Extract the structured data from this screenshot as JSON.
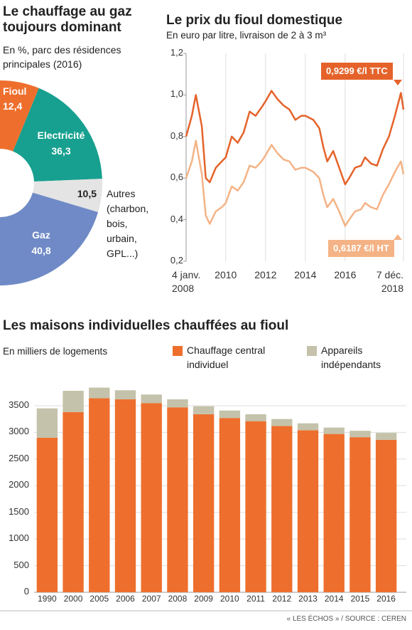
{
  "chart_data": [
    {
      "type": "donut",
      "title": "Le chauffage au gaz toujours dominant",
      "subtitle": "En %, parc des résidences principales (2016)",
      "categories": [
        "Fioul",
        "Electricité",
        "Autres (charbon, bois, urbain, GPL...)",
        "Gaz"
      ],
      "values": [
        12.4,
        36.3,
        10.5,
        40.8
      ],
      "value_labels": [
        "12,4",
        "36,3",
        "10,5",
        "40,8"
      ],
      "colors": [
        "#ee6f2d",
        "#17a08f",
        "#e4e4e4",
        "#6f8ac6"
      ]
    },
    {
      "type": "line",
      "title": "Le prix du fioul domestique",
      "subtitle": "En euro par litre, livraison de 2 à 3 m³",
      "x": [
        2008.01,
        2008.3,
        2008.5,
        2008.8,
        2009.0,
        2009.2,
        2009.5,
        2009.8,
        2010.0,
        2010.3,
        2010.6,
        2010.9,
        2011.2,
        2011.5,
        2011.8,
        2012.0,
        2012.3,
        2012.6,
        2012.9,
        2013.2,
        2013.5,
        2013.8,
        2014.0,
        2014.4,
        2014.7,
        2014.9,
        2015.1,
        2015.4,
        2015.7,
        2016.0,
        2016.2,
        2016.5,
        2016.8,
        2017.0,
        2017.3,
        2017.6,
        2017.9,
        2018.2,
        2018.5,
        2018.8,
        2018.93
      ],
      "series": [
        {
          "color": "#e5632a",
          "values": [
            0.8,
            0.9,
            1.0,
            0.85,
            0.6,
            0.58,
            0.65,
            0.68,
            0.7,
            0.8,
            0.77,
            0.82,
            0.92,
            0.9,
            0.94,
            0.97,
            1.02,
            0.98,
            0.95,
            0.93,
            0.88,
            0.9,
            0.9,
            0.88,
            0.84,
            0.75,
            0.68,
            0.73,
            0.65,
            0.57,
            0.6,
            0.65,
            0.66,
            0.7,
            0.67,
            0.66,
            0.74,
            0.8,
            0.9,
            1.01,
            0.9299
          ]
        },
        {
          "color": "#f4b386",
          "values": [
            0.6,
            0.68,
            0.78,
            0.62,
            0.42,
            0.38,
            0.44,
            0.46,
            0.48,
            0.56,
            0.54,
            0.58,
            0.66,
            0.65,
            0.68,
            0.71,
            0.76,
            0.72,
            0.69,
            0.68,
            0.64,
            0.65,
            0.65,
            0.63,
            0.6,
            0.52,
            0.46,
            0.5,
            0.44,
            0.37,
            0.4,
            0.44,
            0.45,
            0.48,
            0.46,
            0.45,
            0.52,
            0.57,
            0.63,
            0.68,
            0.6187
          ]
        }
      ],
      "annotations": [
        {
          "text": "0,9299 €/l TTC"
        },
        {
          "text": "0,6187 €/l HT"
        }
      ],
      "xlim": [
        2008.01,
        2018.93
      ],
      "xticks": [
        {
          "value": 2008.01,
          "label": "4 janv. 2008"
        },
        2010,
        2012,
        2014,
        2016,
        {
          "value": 2018.93,
          "label": "7 déc. 2018"
        }
      ],
      "ylim": [
        0.2,
        1.2
      ],
      "yticks": [
        {
          "value": 0.2,
          "label": "0,2"
        },
        {
          "value": 0.4,
          "label": "0,4"
        },
        {
          "value": 0.6,
          "label": "0,6"
        },
        {
          "value": 0.8,
          "label": "0,8"
        },
        {
          "value": 1.0,
          "label": "1,0"
        },
        {
          "value": 1.2,
          "label": "1,2"
        }
      ],
      "grid": "x"
    },
    {
      "type": "stacked_bar",
      "title": "Les maisons individuelles chauffées au fioul",
      "y_label": "En milliers de logements",
      "categories": [
        "1990",
        "2000",
        "2005",
        "2006",
        "2007",
        "2008",
        "2009",
        "2010",
        "2011",
        "2012",
        "2013",
        "2014",
        "2015",
        "2016"
      ],
      "series": [
        {
          "name": "Chauffage central individuel",
          "color": "#ee6f2d",
          "values": [
            2900,
            3380,
            3640,
            3620,
            3550,
            3470,
            3340,
            3270,
            3210,
            3120,
            3040,
            2970,
            2910,
            2860
          ]
        },
        {
          "name": "Appareils indépendants",
          "color": "#c4c2aa",
          "values": [
            550,
            400,
            200,
            170,
            160,
            150,
            150,
            140,
            130,
            130,
            130,
            120,
            120,
            130
          ]
        }
      ],
      "ylim": [
        0,
        3900
      ],
      "yticks": [
        0,
        500,
        1000,
        1500,
        2000,
        2500,
        3000,
        3500
      ],
      "grid": true,
      "legend": "top"
    }
  ],
  "footer": {
    "text": "« LES ÉCHOS » / SOURCE : CEREN"
  }
}
